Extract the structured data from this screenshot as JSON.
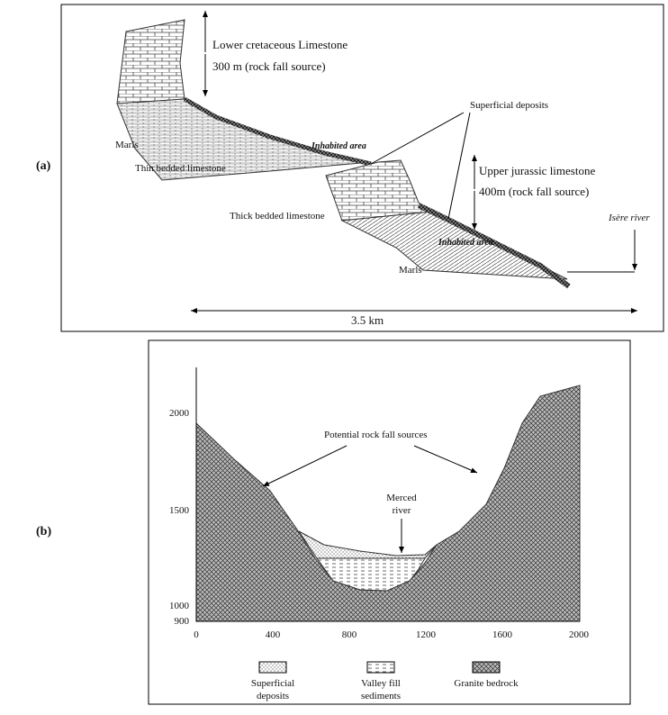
{
  "panel_a": {
    "label": "(a)",
    "annotations": [
      "Lower cretaceous Limestone",
      "300 m (rock fall source)",
      "Superficial deposits",
      "Marls",
      "Inhabited area",
      "Thin bedded limestone",
      "Upper jurassic limestone",
      "400m (rock fall source)",
      "Thick bedded limestone",
      "Isère river",
      "Inhabited area",
      "Marls",
      "3.5 km"
    ]
  },
  "panel_b": {
    "label": "(b)",
    "xticks": [
      "0",
      "400",
      "800",
      "1200",
      "1600",
      "2000"
    ],
    "yticks": [
      "2000",
      "1500",
      "1000",
      "900"
    ],
    "annotations": [
      "Potential rock fall sources",
      "Merced",
      "river"
    ],
    "legend": [
      [
        "Superficial",
        "deposits"
      ],
      [
        "Valley fill",
        "sediments"
      ],
      [
        "Granite bedrock"
      ]
    ]
  }
}
